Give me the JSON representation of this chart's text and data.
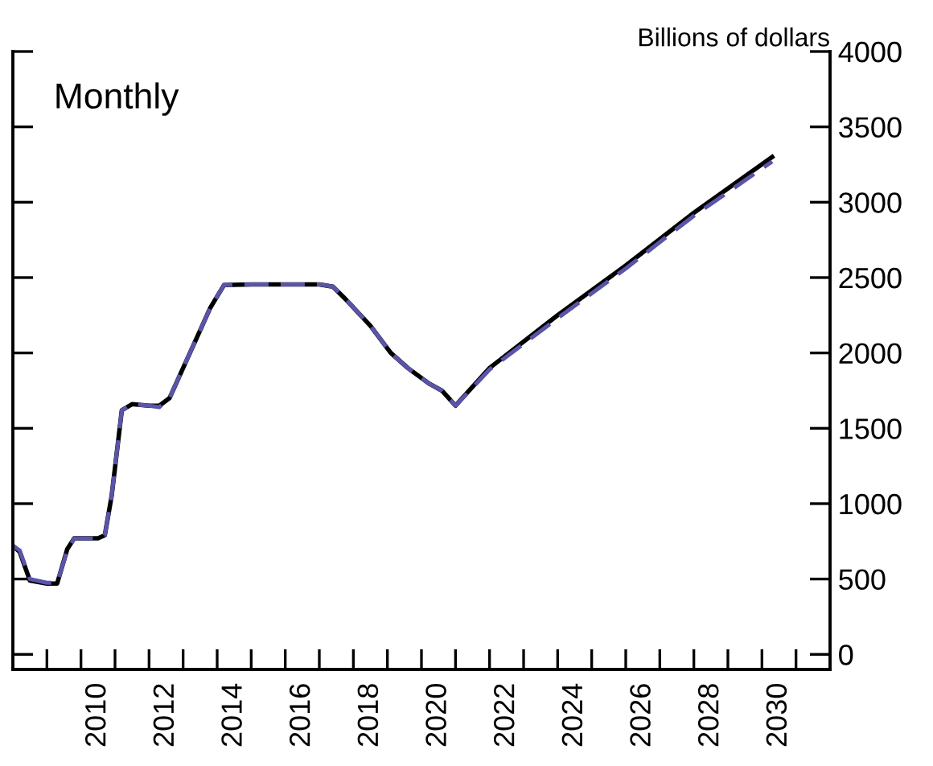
{
  "chart_data": {
    "type": "line",
    "ylabel": "Billions of dollars",
    "annotations": [
      "Monthly"
    ],
    "x": [
      2008.0,
      2008.2,
      2008.5,
      2009.0,
      2009.3,
      2009.6,
      2009.8,
      2010.5,
      2010.7,
      2010.9,
      2011.2,
      2011.5,
      2012.0,
      2012.3,
      2012.6,
      2013.2,
      2013.8,
      2014.2,
      2015.0,
      2016.0,
      2017.0,
      2017.4,
      2017.8,
      2018.5,
      2019.1,
      2019.6,
      2020.2,
      2020.6,
      2021.0,
      2022.0,
      2024.0,
      2026.0,
      2028.0,
      2030.3
    ],
    "series": [
      {
        "color": "#000000",
        "line_style": "solid",
        "values": [
          720,
          680,
          490,
          470,
          470,
          700,
          770,
          770,
          790,
          1050,
          1620,
          1660,
          1650,
          1650,
          1700,
          2000,
          2300,
          2450,
          2455,
          2455,
          2455,
          2440,
          2350,
          2180,
          2000,
          1900,
          1800,
          1750,
          1650,
          1900,
          2250,
          2580,
          2930,
          3300
        ]
      },
      {
        "color": "#5a55a8",
        "line_style": "dashed",
        "values": [
          720,
          690,
          500,
          475,
          475,
          690,
          770,
          770,
          790,
          1050,
          1620,
          1660,
          1650,
          1640,
          1700,
          2000,
          2300,
          2450,
          2455,
          2455,
          2455,
          2440,
          2350,
          2180,
          2000,
          1900,
          1800,
          1750,
          1650,
          1890,
          2230,
          2560,
          2910,
          3270
        ]
      }
    ],
    "xlim": [
      2008,
      2032
    ],
    "xticks": [
      {
        "value": 2009,
        "label": null
      },
      {
        "value": 2010,
        "label": null
      },
      {
        "value": 2011,
        "label": null
      },
      {
        "value": 2012,
        "label": null
      },
      {
        "value": 2013,
        "label": null
      },
      {
        "value": 2014,
        "label": null
      },
      {
        "value": 2015,
        "label": null
      },
      {
        "value": 2016,
        "label": null
      },
      {
        "value": 2017,
        "label": null
      },
      {
        "value": 2018,
        "label": null
      },
      {
        "value": 2019,
        "label": null
      },
      {
        "value": 2020,
        "label": null
      },
      {
        "value": 2021,
        "label": null
      },
      {
        "value": 2022,
        "label": null
      },
      {
        "value": 2023,
        "label": null
      },
      {
        "value": 2024,
        "label": null
      },
      {
        "value": 2025,
        "label": null
      },
      {
        "value": 2026,
        "label": null
      },
      {
        "value": 2027,
        "label": null
      },
      {
        "value": 2028,
        "label": null
      },
      {
        "value": 2029,
        "label": null
      },
      {
        "value": 2030,
        "label": null
      },
      {
        "value": 2031,
        "label": null
      },
      {
        "value": 2010.5,
        "label": "2010"
      },
      {
        "value": 2012.5,
        "label": "2012"
      },
      {
        "value": 2014.5,
        "label": "2014"
      },
      {
        "value": 2016.5,
        "label": "2016"
      },
      {
        "value": 2018.5,
        "label": "2018"
      },
      {
        "value": 2020.5,
        "label": "2020"
      },
      {
        "value": 2022.5,
        "label": "2022"
      },
      {
        "value": 2024.5,
        "label": "2024"
      },
      {
        "value": 2026.5,
        "label": "2026"
      },
      {
        "value": 2028.5,
        "label": "2028"
      },
      {
        "value": 2030.5,
        "label": "2030"
      }
    ],
    "ylim": [
      -100,
      4000
    ],
    "yticks": [
      0,
      500,
      1000,
      1500,
      2000,
      2500,
      3000,
      3500,
      4000
    ],
    "grid": false,
    "legend": false
  }
}
